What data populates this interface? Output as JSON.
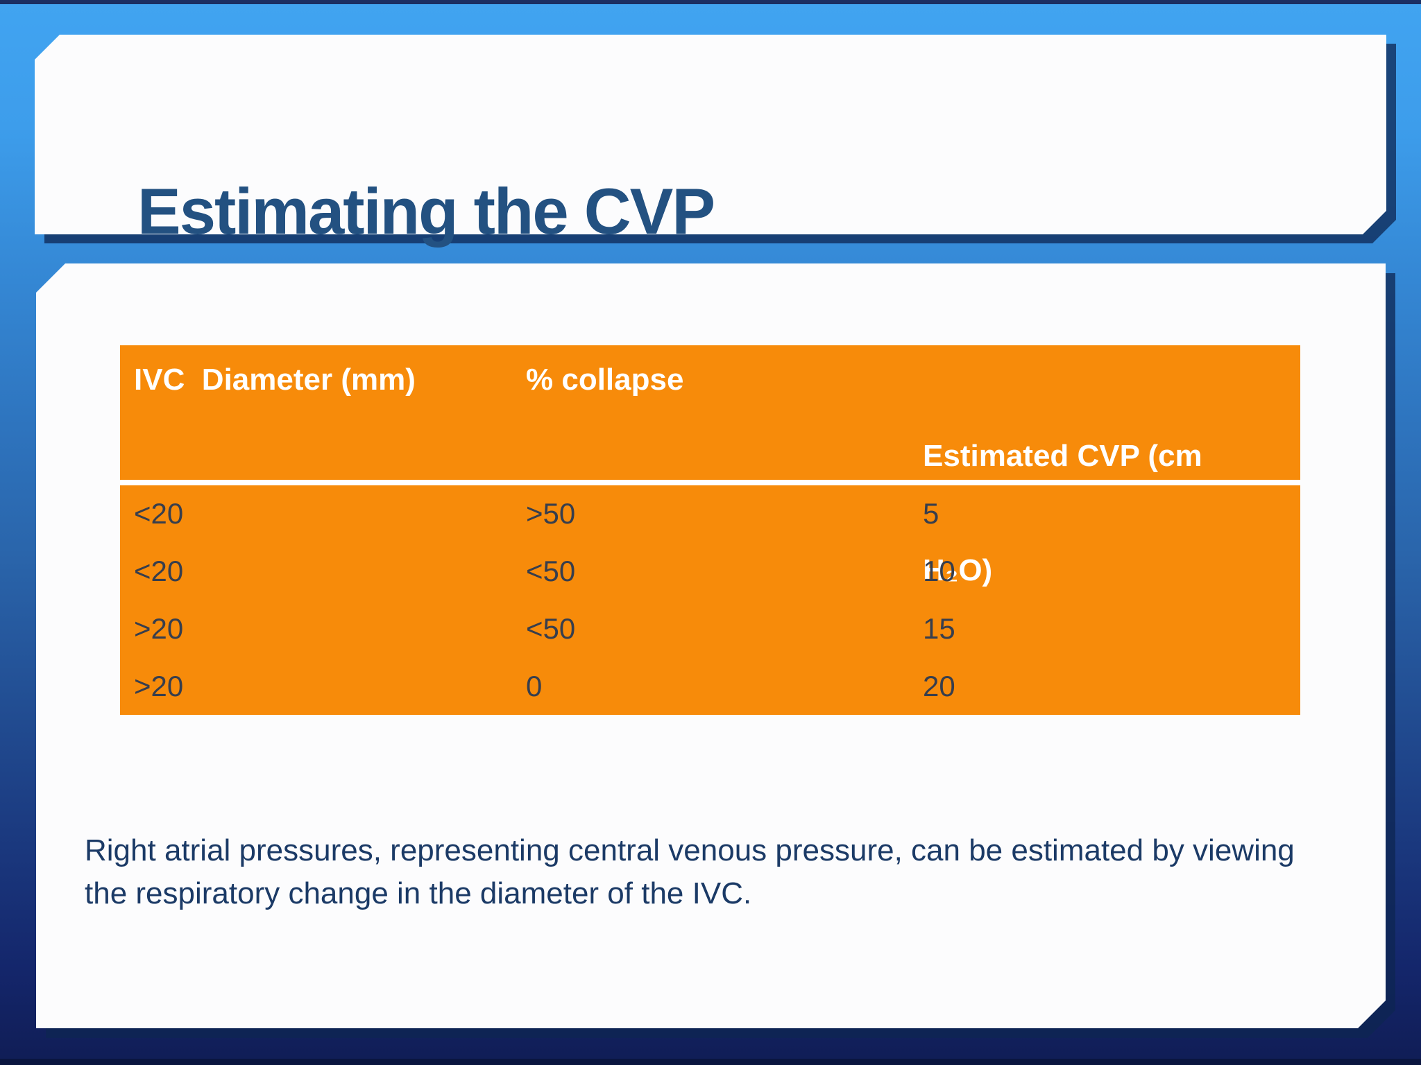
{
  "title": "Estimating the CVP",
  "table": {
    "headers": {
      "col1": "IVC  Diameter (mm)",
      "col2": "% collapse",
      "col3_line1": "Estimated CVP (cm",
      "col3_line2": "H₂O)"
    },
    "rows": [
      [
        "<20",
        ">50",
        "5"
      ],
      [
        "<20",
        "<50",
        "10"
      ],
      [
        ">20",
        "<50",
        "15"
      ],
      [
        ">20",
        "0",
        "20"
      ]
    ]
  },
  "caption": "Right atrial pressures, representing central venous pressure, can be estimated by viewing the respiratory change in the diameter of the IVC.",
  "colors": {
    "table_orange": "#f78b0a",
    "header_text": "#ffffff",
    "row_text": "#373e4d",
    "title_text": "#235181",
    "caption_text": "#1b3a66",
    "background_top": "#41a4f1",
    "background_bottom": "#101d55",
    "panel_white": "#fcfcfd",
    "panel_shadow": "#0d2652"
  }
}
